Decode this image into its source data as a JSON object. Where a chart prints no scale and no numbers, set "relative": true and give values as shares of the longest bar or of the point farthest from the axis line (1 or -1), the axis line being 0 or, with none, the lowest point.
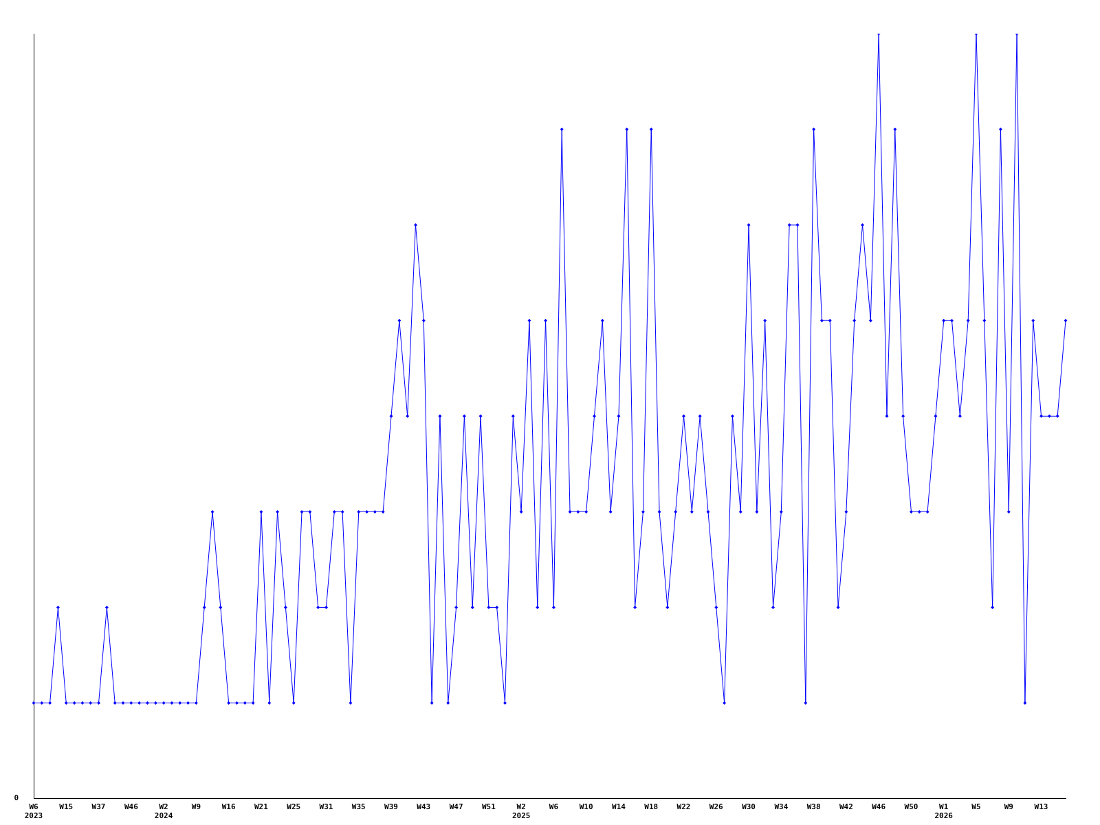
{
  "chart_data": {
    "type": "line",
    "relative": true,
    "marker": "diamond",
    "grid": false,
    "legend": false,
    "annotations": [
      "0"
    ],
    "categories": [
      "W6\n2023",
      null,
      null,
      null,
      "W15",
      null,
      null,
      null,
      "W37",
      null,
      null,
      null,
      "W46",
      null,
      null,
      null,
      "W2\n2024",
      null,
      null,
      null,
      "W9",
      null,
      null,
      null,
      "W16",
      null,
      null,
      null,
      "W21",
      null,
      null,
      null,
      "W25",
      null,
      null,
      null,
      "W31",
      null,
      null,
      null,
      "W35",
      null,
      null,
      null,
      "W39",
      null,
      null,
      null,
      "W43",
      null,
      null,
      null,
      "W47",
      null,
      null,
      null,
      "W51",
      null,
      null,
      null,
      "W2\n2025",
      null,
      null,
      null,
      "W6",
      null,
      null,
      null,
      "W10",
      null,
      null,
      null,
      "W14",
      null,
      null,
      null,
      "W18",
      null,
      null,
      null,
      "W22",
      null,
      null,
      null,
      "W26",
      null,
      null,
      null,
      "W30",
      null,
      null,
      null,
      "W34",
      null,
      null,
      null,
      "W38",
      null,
      null,
      null,
      "W42",
      null,
      null,
      null,
      "W46",
      null,
      null,
      null,
      "W50",
      null,
      null,
      null,
      "W1\n2026",
      null,
      null,
      null,
      "W5",
      null,
      null,
      null,
      "W9",
      null,
      null,
      null,
      "W13",
      null,
      null,
      null
    ],
    "series": [
      {
        "color": "#0000ff",
        "values": [
          0.125,
          0.125,
          0.125,
          0.25,
          0.125,
          0.125,
          0.125,
          0.125,
          0.125,
          0.25,
          0.125,
          0.125,
          0.125,
          0.125,
          0.125,
          0.125,
          0.125,
          0.125,
          0.125,
          0.125,
          0.125,
          0.25,
          0.375,
          0.25,
          0.125,
          0.125,
          0.125,
          0.125,
          0.375,
          0.125,
          0.375,
          0.25,
          0.125,
          0.375,
          0.375,
          0.25,
          0.25,
          0.375,
          0.375,
          0.125,
          0.375,
          0.375,
          0.375,
          0.375,
          0.5,
          0.625,
          0.5,
          0.75,
          0.625,
          0.125,
          0.5,
          0.125,
          0.25,
          0.5,
          0.25,
          0.5,
          0.25,
          0.25,
          0.125,
          0.5,
          0.375,
          0.625,
          0.25,
          0.625,
          0.25,
          0.875,
          0.375,
          0.375,
          0.375,
          0.5,
          0.625,
          0.375,
          0.5,
          0.875,
          0.25,
          0.375,
          0.875,
          0.375,
          0.25,
          0.375,
          0.5,
          0.375,
          0.5,
          0.375,
          0.25,
          0.125,
          0.5,
          0.375,
          0.75,
          0.375,
          0.625,
          0.25,
          0.375,
          0.75,
          0.75,
          0.125,
          0.875,
          0.625,
          0.625,
          0.25,
          0.375,
          0.625,
          0.75,
          0.625,
          1,
          0.5,
          0.875,
          0.5,
          0.375,
          0.375,
          0.375,
          0.5,
          0.625,
          0.625,
          0.5,
          0.625,
          1,
          0.625,
          0.25,
          0.875,
          0.375,
          1,
          0.125,
          0.625,
          0.5,
          0.5,
          0.5,
          0.625
        ]
      }
    ]
  }
}
